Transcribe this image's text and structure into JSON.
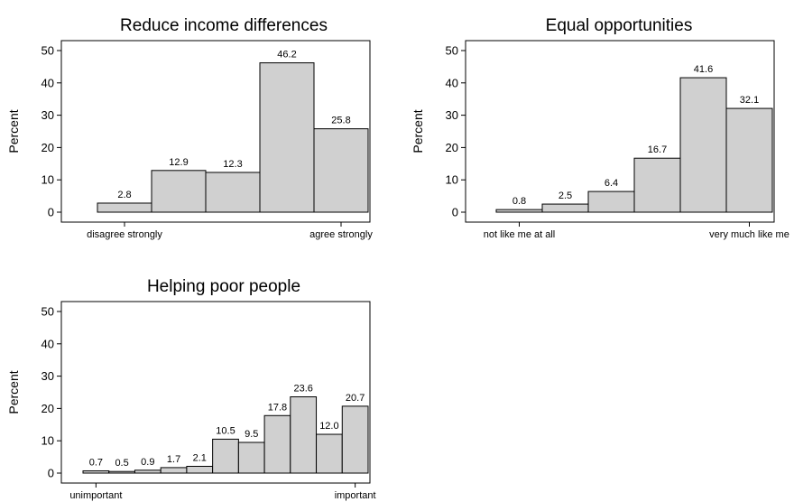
{
  "chart_data": [
    {
      "type": "bar",
      "title": "Reduce income differences",
      "ylabel": "Percent",
      "ylim": [
        0,
        50
      ],
      "yticks": [
        0,
        10,
        20,
        30,
        40,
        50
      ],
      "x_end_labels": [
        "disagree strongly",
        "agree strongly"
      ],
      "values": [
        2.8,
        12.9,
        12.3,
        46.2,
        25.8
      ],
      "value_labels": [
        "2.8",
        "12.9",
        "12.3",
        "46.2",
        "25.8"
      ]
    },
    {
      "type": "bar",
      "title": "Equal opportunities",
      "ylabel": "Percent",
      "ylim": [
        0,
        50
      ],
      "yticks": [
        0,
        10,
        20,
        30,
        40,
        50
      ],
      "x_end_labels": [
        "not like me at all",
        "very much like me"
      ],
      "values": [
        0.8,
        2.5,
        6.4,
        16.7,
        41.6,
        32.1
      ],
      "value_labels": [
        "0.8",
        "2.5",
        "6.4",
        "16.7",
        "41.6",
        "32.1"
      ]
    },
    {
      "type": "bar",
      "title": "Helping poor people",
      "ylabel": "Percent",
      "ylim": [
        0,
        50
      ],
      "yticks": [
        0,
        10,
        20,
        30,
        40,
        50
      ],
      "x_end_labels": [
        "unimportant",
        "important"
      ],
      "values": [
        0.7,
        0.5,
        0.9,
        1.7,
        2.1,
        10.5,
        9.5,
        17.8,
        23.6,
        12.0,
        20.7
      ],
      "value_labels": [
        "0.7",
        "0.5",
        "0.9",
        "1.7",
        "2.1",
        "10.5",
        "9.5",
        "17.8",
        "23.6",
        "12.0",
        "20.7"
      ]
    }
  ]
}
